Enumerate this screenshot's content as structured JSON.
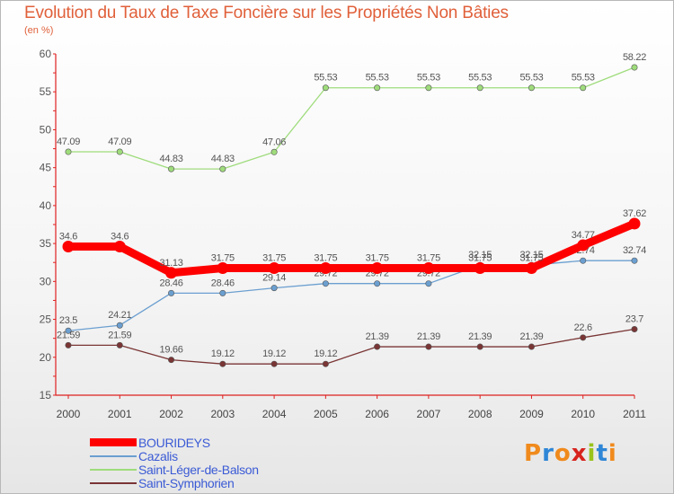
{
  "header": {
    "title": "Evolution du Taux de Taxe Foncière sur les Propriétés Non Bâties",
    "subtitle": "(en %)"
  },
  "logo": {
    "text": "Proxiti",
    "colors": [
      "#f08a1c",
      "#2f86d6",
      "#f08a1c",
      "#d7231e",
      "#9ac31c",
      "#2f86d6",
      "#f08a1c"
    ]
  },
  "chart_data": {
    "type": "line",
    "title": "Evolution du Taux de Taxe Foncière sur les Propriétés Non Bâties",
    "ylabel": "(en %)",
    "xlabel": "",
    "x": [
      "2000",
      "2001",
      "2002",
      "2003",
      "2004",
      "2005",
      "2006",
      "2007",
      "2008",
      "2009",
      "2010",
      "2011"
    ],
    "ylim": [
      15,
      60
    ],
    "yticks": [
      15,
      20,
      25,
      30,
      35,
      40,
      45,
      50,
      55,
      60
    ],
    "grid": false,
    "legend_position": "bottom-left",
    "series": [
      {
        "name": "BOURIDEYS",
        "color": "#ff0000",
        "values": [
          34.6,
          34.6,
          31.13,
          31.75,
          31.75,
          31.75,
          31.75,
          31.75,
          31.75,
          31.75,
          34.77,
          37.62
        ],
        "labels": [
          "34.6",
          "34.6",
          "31.13",
          "31.75",
          "31.75",
          "31.75",
          "31.75",
          "31.75",
          "31.75",
          "31.75",
          "34.77",
          "37.62"
        ]
      },
      {
        "name": "Cazalis",
        "color": "#6b9fd0",
        "values": [
          23.5,
          24.21,
          28.46,
          28.46,
          29.14,
          29.72,
          29.72,
          29.72,
          32.15,
          32.15,
          32.74,
          32.74
        ],
        "labels": [
          "23.5",
          "24.21",
          "28.46",
          "28.46",
          "29.14",
          "29.72",
          "29.72",
          "29.72",
          "32.15",
          "32.15",
          "32.74",
          "32.74"
        ]
      },
      {
        "name": "Saint-Léger-de-Balson",
        "color": "#9fdc7c",
        "values": [
          47.09,
          47.09,
          44.83,
          44.83,
          47.06,
          55.53,
          55.53,
          55.53,
          55.53,
          55.53,
          55.53,
          58.22
        ],
        "labels": [
          "47.09",
          "47.09",
          "44.83",
          "44.83",
          "47.06",
          "55.53",
          "55.53",
          "55.53",
          "55.53",
          "55.53",
          "55.53",
          "58.22"
        ]
      },
      {
        "name": "Saint-Symphorien",
        "color": "#7a3535",
        "values": [
          21.59,
          21.59,
          19.66,
          19.12,
          19.12,
          19.12,
          21.39,
          21.39,
          21.39,
          21.39,
          22.6,
          23.7
        ],
        "labels": [
          "21.59",
          "21.59",
          "19.66",
          "19.12",
          "19.12",
          "19.12",
          "21.39",
          "21.39",
          "21.39",
          "21.39",
          "22.6",
          "23.7"
        ]
      }
    ]
  }
}
